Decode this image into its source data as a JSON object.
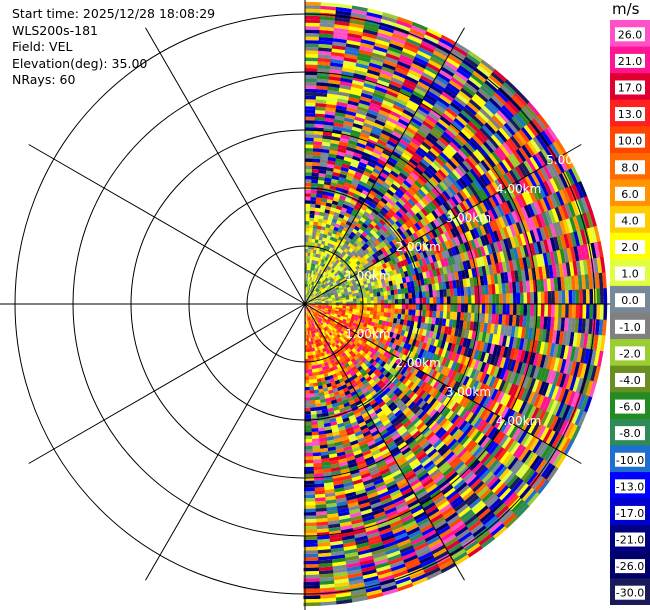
{
  "header": {
    "start_time": "Start time: 2025/12/28 18:08:29",
    "instrument": "WLS200s-181",
    "field": "Field: VEL",
    "elevation": "Elevation(deg): 35.00",
    "nrays": "NRays: 60"
  },
  "range_rings": [
    "1.00km",
    "2.00km",
    "3.00km",
    "4.00km",
    "5.00km"
  ],
  "colorbar": {
    "unit": "m/s",
    "labels": [
      "26.0",
      "21.0",
      "17.0",
      "13.0",
      "10.0",
      "8.0",
      "6.0",
      "4.0",
      "2.0",
      "1.0",
      "0.0",
      "-1.0",
      "-2.0",
      "-4.0",
      "-6.0",
      "-8.0",
      "-10.0",
      "-13.0",
      "-17.0",
      "-21.0",
      "-26.0",
      "-30.0"
    ],
    "colors": [
      "#ff50c8",
      "#ff1493",
      "#e00030",
      "#ff2020",
      "#ff4500",
      "#ff6a00",
      "#ff9400",
      "#ffcc00",
      "#ffff00",
      "#e0ff40",
      "#778899",
      "#808080",
      "#9acd32",
      "#6b8e23",
      "#228b22",
      "#2e8b57",
      "#1e6fd0",
      "#0000ff",
      "#0000cd",
      "#000080",
      "#00006b",
      "#1a1a5a"
    ]
  },
  "chart_data": {
    "type": "heatmap",
    "field": "VEL",
    "elevation_deg": 35.0,
    "nrays": 60,
    "range_km_max": 5.2,
    "azimuth_coverage_deg": [
      0,
      180
    ],
    "value_range": [
      -30.0,
      26.0
    ],
    "unit": "m/s"
  }
}
